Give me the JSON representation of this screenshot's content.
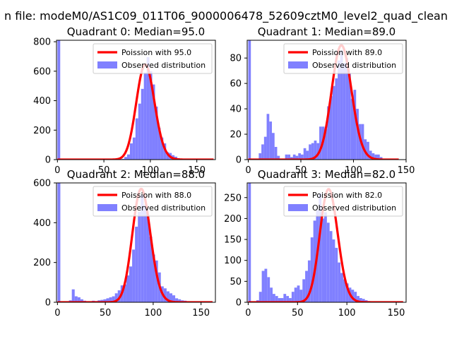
{
  "suptitle": "n file: modeM0/AS1C09_011T06_9000006478_52609cztM0_level2_quad_clean",
  "colors": {
    "bar": "#8080ff",
    "curve": "#ff0000",
    "axis": "#000000",
    "background": "#ffffff"
  },
  "chart_data": [
    {
      "type": "bar",
      "title": "Quadrant 0: Median=95.0",
      "xlim": [
        -1,
        170
      ],
      "ylim": [
        0,
        810
      ],
      "xticks": [
        0,
        50,
        100,
        150
      ],
      "yticks": [
        0,
        200,
        400,
        600,
        800
      ],
      "bin_width": 3,
      "legend": [
        "Poission with 95.0",
        "Observed distribution"
      ],
      "poisson_mean": 95.0,
      "poisson_peak": 645,
      "poisson_range": [
        0,
        168
      ],
      "bins_x": [
        0,
        3,
        6,
        9,
        12,
        15,
        18,
        21,
        24,
        27,
        30,
        33,
        36,
        39,
        42,
        45,
        48,
        51,
        54,
        57,
        60,
        63,
        66,
        69,
        72,
        75,
        78,
        81,
        84,
        87,
        90,
        93,
        96,
        99,
        102,
        105,
        108,
        111,
        114,
        117,
        120,
        123,
        126,
        129,
        132,
        135,
        138,
        141,
        144,
        147,
        150,
        153,
        156,
        159,
        162,
        165
      ],
      "bins_y": [
        810,
        0,
        0,
        0,
        0,
        0,
        0,
        0,
        0,
        0,
        0,
        0,
        0,
        0,
        0,
        0,
        0,
        0,
        0,
        0,
        0,
        0,
        3,
        5,
        18,
        35,
        110,
        150,
        280,
        380,
        480,
        590,
        695,
        600,
        510,
        360,
        215,
        150,
        110,
        50,
        45,
        30,
        20,
        10,
        5,
        3,
        2,
        0,
        0,
        0,
        0,
        0,
        0,
        0,
        0,
        0
      ]
    },
    {
      "type": "bar",
      "title": "Quadrant 1: Median=89.0",
      "xlim": [
        -1,
        150
      ],
      "ylim": [
        0,
        94
      ],
      "xticks": [
        0,
        50,
        100,
        150
      ],
      "yticks": [
        0,
        20,
        40,
        60,
        80
      ],
      "bin_width": 2.5,
      "legend": [
        "Poission with 89.0",
        "Observed distribution"
      ],
      "poisson_mean": 89.0,
      "poisson_peak": 90,
      "poisson_range": [
        0,
        143
      ],
      "bins_x": [
        0,
        2.5,
        5,
        7.5,
        10,
        12.5,
        15,
        17.5,
        20,
        22.5,
        25,
        27.5,
        30,
        32.5,
        35,
        37.5,
        40,
        42.5,
        45,
        47.5,
        50,
        52.5,
        55,
        57.5,
        60,
        62.5,
        65,
        67.5,
        70,
        72.5,
        75,
        77.5,
        80,
        82.5,
        85,
        87.5,
        90,
        92.5,
        95,
        97.5,
        100,
        102.5,
        105,
        107.5,
        110,
        112.5,
        115,
        117.5,
        120,
        122.5,
        125,
        127.5,
        130,
        132.5,
        135,
        137.5,
        140
      ],
      "bins_y": [
        94,
        0,
        0,
        0,
        5,
        12,
        18,
        36,
        30,
        21,
        10,
        3,
        0,
        0,
        4,
        4,
        2,
        4,
        3,
        5,
        4,
        9,
        7,
        12,
        13,
        15,
        13,
        26,
        26,
        24,
        42,
        50,
        58,
        64,
        78,
        86,
        76,
        80,
        68,
        48,
        55,
        40,
        28,
        28,
        16,
        14,
        7,
        5,
        4,
        4,
        2,
        0,
        0,
        0,
        0,
        0,
        0
      ]
    },
    {
      "type": "bar",
      "title": "Quadrant 2: Median=88.0",
      "xlim": [
        -1,
        165
      ],
      "ylim": [
        0,
        600
      ],
      "xticks": [
        0,
        50,
        100,
        150
      ],
      "yticks": [
        0,
        200,
        400,
        600
      ],
      "bin_width": 3,
      "legend": [
        "Poission with 88.0",
        "Observed distribution"
      ],
      "poisson_mean": 88.0,
      "poisson_peak": 570,
      "poisson_range": [
        0,
        162
      ],
      "bins_x": [
        0,
        3,
        6,
        9,
        12,
        15,
        18,
        21,
        24,
        27,
        30,
        33,
        36,
        39,
        42,
        45,
        48,
        51,
        54,
        57,
        60,
        63,
        66,
        69,
        72,
        75,
        78,
        81,
        84,
        87,
        90,
        93,
        96,
        99,
        102,
        105,
        108,
        111,
        114,
        117,
        120,
        123,
        126,
        129,
        132,
        135,
        138,
        141,
        144,
        147,
        150,
        153,
        156,
        159
      ],
      "bins_y": [
        600,
        0,
        0,
        0,
        10,
        65,
        30,
        25,
        15,
        8,
        5,
        5,
        8,
        6,
        10,
        12,
        15,
        20,
        25,
        30,
        45,
        60,
        85,
        90,
        135,
        180,
        265,
        380,
        455,
        540,
        490,
        440,
        330,
        240,
        210,
        150,
        80,
        70,
        55,
        45,
        35,
        20,
        15,
        10,
        8,
        5,
        3,
        2,
        1,
        0,
        0,
        0,
        0,
        0
      ]
    },
    {
      "type": "bar",
      "title": "Quadrant 3: Median=82.0",
      "xlim": [
        -1,
        160
      ],
      "ylim": [
        0,
        285
      ],
      "xticks": [
        0,
        50,
        100,
        150
      ],
      "yticks": [
        0,
        50,
        100,
        150,
        200,
        250
      ],
      "bin_width": 2.75,
      "legend": [
        "Poission with 82.0",
        "Observed distribution"
      ],
      "poisson_mean": 82.0,
      "poisson_peak": 270,
      "poisson_range": [
        0,
        157
      ],
      "bins_x": [
        0,
        2.75,
        5.5,
        8.25,
        11,
        13.75,
        16.5,
        19.25,
        22,
        24.75,
        27.5,
        30.25,
        33,
        35.75,
        38.5,
        41.25,
        44,
        46.75,
        49.5,
        52.25,
        55,
        57.75,
        60.5,
        63.25,
        66,
        68.75,
        71.5,
        74.25,
        77,
        79.75,
        82.5,
        85.25,
        88,
        90.75,
        93.5,
        96.25,
        99,
        101.75,
        104.5,
        107.25,
        110,
        112.75,
        115.5,
        118.25,
        121,
        123.75,
        126.5,
        129.25,
        132,
        134.75,
        137.5,
        140.25,
        143,
        145.75,
        148.5,
        151.25,
        154
      ],
      "bins_y": [
        285,
        0,
        0,
        5,
        25,
        75,
        80,
        60,
        35,
        20,
        15,
        10,
        10,
        20,
        15,
        10,
        25,
        35,
        40,
        30,
        55,
        75,
        100,
        155,
        195,
        220,
        260,
        200,
        215,
        190,
        170,
        150,
        130,
        95,
        70,
        55,
        45,
        35,
        30,
        25,
        15,
        10,
        8,
        5,
        3,
        2,
        1,
        0,
        0,
        0,
        0,
        0,
        0,
        0,
        0,
        0,
        0
      ]
    }
  ]
}
